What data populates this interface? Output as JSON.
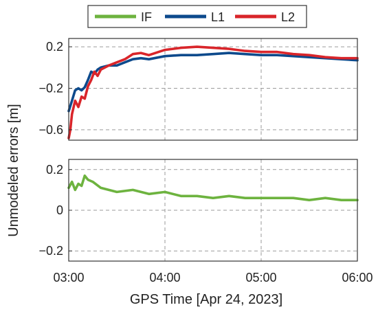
{
  "chart_data": [
    {
      "type": "line",
      "panel": "top",
      "ylabel": "Unmodeled errors  [m]",
      "xlabel": "",
      "x_ticks": [
        180,
        240,
        300,
        360
      ],
      "x_tick_labels": [
        "",
        "",
        "",
        ""
      ],
      "xlim": [
        180,
        360
      ],
      "ylim": [
        -0.7,
        0.28
      ],
      "y_ticks": [
        0.2,
        -0.2,
        -0.6
      ],
      "y_tick_labels": [
        "0.2",
        "−0.2",
        "−0.6"
      ],
      "grid": true,
      "legend": {
        "placement": "top-center",
        "entries": [
          "IF",
          "L1",
          "L2"
        ]
      },
      "series": [
        {
          "name": "L1",
          "color": "#0d4a8c",
          "x": [
            180,
            182,
            184,
            186,
            188,
            190,
            192,
            194,
            196,
            198,
            200,
            205,
            210,
            215,
            220,
            225,
            230,
            240,
            250,
            260,
            270,
            280,
            290,
            300,
            310,
            320,
            330,
            340,
            350,
            360
          ],
          "y": [
            -0.42,
            -0.32,
            -0.22,
            -0.2,
            -0.22,
            -0.19,
            -0.12,
            -0.04,
            -0.06,
            -0.02,
            0.0,
            0.02,
            0.02,
            0.05,
            0.08,
            0.09,
            0.08,
            0.11,
            0.12,
            0.12,
            0.13,
            0.14,
            0.13,
            0.12,
            0.12,
            0.11,
            0.1,
            0.09,
            0.08,
            0.07
          ]
        },
        {
          "name": "L2",
          "color": "#d9252a",
          "x": [
            180,
            181,
            182,
            184,
            186,
            188,
            190,
            192,
            194,
            196,
            198,
            200,
            205,
            210,
            215,
            220,
            225,
            230,
            240,
            250,
            260,
            270,
            280,
            290,
            300,
            310,
            320,
            330,
            340,
            350,
            360
          ],
          "y": [
            -0.68,
            -0.6,
            -0.45,
            -0.32,
            -0.38,
            -0.28,
            -0.3,
            -0.18,
            -0.12,
            -0.04,
            -0.08,
            -0.02,
            0.02,
            0.05,
            0.08,
            0.13,
            0.14,
            0.12,
            0.17,
            0.19,
            0.2,
            0.19,
            0.18,
            0.16,
            0.15,
            0.15,
            0.13,
            0.12,
            0.1,
            0.09,
            0.09
          ]
        }
      ]
    },
    {
      "type": "line",
      "panel": "bottom",
      "xlabel": "GPS Time [Apr 24, 2023]",
      "xlim": [
        180,
        360
      ],
      "ylim": [
        -0.25,
        0.25
      ],
      "x_ticks": [
        180,
        240,
        300,
        360
      ],
      "x_tick_labels": [
        "03:00",
        "04:00",
        "05:00",
        "06:00"
      ],
      "y_ticks": [
        0.2,
        0,
        -0.2
      ],
      "y_tick_labels": [
        "0.2",
        "0",
        "−0.2"
      ],
      "grid": true,
      "series": [
        {
          "name": "IF",
          "color": "#6db33f",
          "x": [
            180,
            182,
            184,
            186,
            188,
            190,
            192,
            195,
            200,
            205,
            210,
            220,
            230,
            240,
            250,
            260,
            270,
            280,
            290,
            300,
            310,
            320,
            330,
            340,
            350,
            360
          ],
          "y": [
            0.11,
            0.14,
            0.1,
            0.13,
            0.12,
            0.17,
            0.15,
            0.14,
            0.11,
            0.1,
            0.09,
            0.1,
            0.08,
            0.09,
            0.07,
            0.07,
            0.06,
            0.07,
            0.06,
            0.06,
            0.06,
            0.06,
            0.05,
            0.06,
            0.05,
            0.05
          ]
        }
      ]
    }
  ]
}
